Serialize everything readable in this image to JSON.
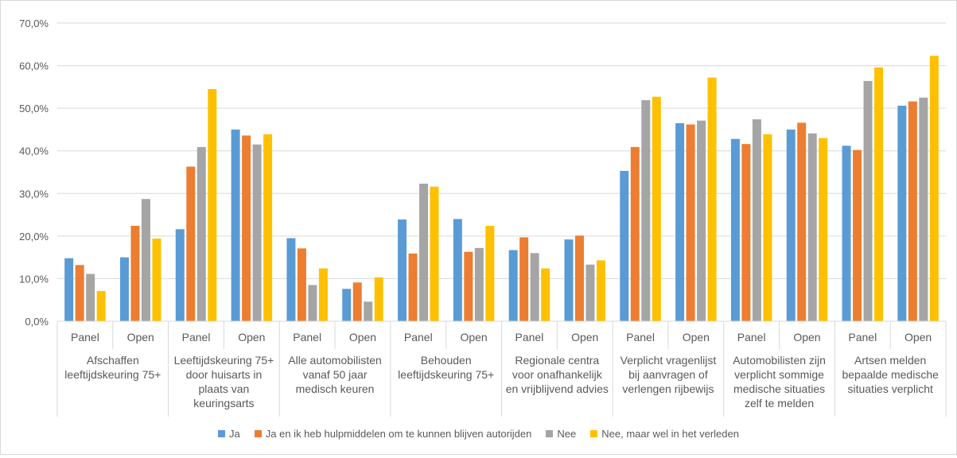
{
  "chart_data": {
    "type": "bar",
    "ylim": [
      0,
      70
    ],
    "yticks": [
      "0,0%",
      "10,0%",
      "20,0%",
      "30,0%",
      "40,0%",
      "50,0%",
      "60,0%",
      "70,0%"
    ],
    "groups": [
      {
        "label": [
          "Afschaffen",
          "leeftijdskeuring 75+"
        ],
        "subs": [
          "Panel",
          "Open"
        ]
      },
      {
        "label": [
          "Leeftijdskeuring 75+",
          "door huisarts in",
          "plaats van",
          "keuringsarts"
        ],
        "subs": [
          "Panel",
          "Open"
        ]
      },
      {
        "label": [
          "Alle automobilisten",
          "vanaf 50 jaar",
          "medisch keuren"
        ],
        "subs": [
          "Panel",
          "Open"
        ]
      },
      {
        "label": [
          "Behouden",
          "leeftijdskeuring 75+"
        ],
        "subs": [
          "Panel",
          "Open"
        ]
      },
      {
        "label": [
          "Regionale centra",
          "voor onafhankelijk",
          "en vrijblijvend advies"
        ],
        "subs": [
          "Panel",
          "Open"
        ]
      },
      {
        "label": [
          "Verplicht vragenlijst",
          "bij aanvragen of",
          "verlengen rijbewijs"
        ],
        "subs": [
          "Panel",
          "Open"
        ]
      },
      {
        "label": [
          "Automobilisten zijn",
          "verplicht sommige",
          "medische situaties",
          "zelf te melden"
        ],
        "subs": [
          "Panel",
          "Open"
        ]
      },
      {
        "label": [
          "Artsen melden",
          "bepaalde medische",
          "situaties verplicht"
        ],
        "subs": [
          "Panel",
          "Open"
        ]
      }
    ],
    "series": [
      {
        "name": "Ja",
        "color": "#5b9bd5",
        "values": [
          14.8,
          15.0,
          21.6,
          45.0,
          19.5,
          7.6,
          23.9,
          24.0,
          16.7,
          19.2,
          35.3,
          46.5,
          42.8,
          45.0,
          41.2,
          50.6
        ]
      },
      {
        "name": "Ja en ik heb hulpmiddelen om te kunnen blijven autorijden",
        "color": "#ed7d31",
        "values": [
          13.2,
          22.4,
          36.3,
          43.6,
          17.1,
          9.1,
          15.9,
          16.3,
          19.7,
          20.1,
          40.9,
          46.2,
          41.6,
          46.6,
          40.2,
          51.6
        ]
      },
      {
        "name": "Nee",
        "color": "#a5a5a5",
        "values": [
          11.1,
          28.7,
          40.9,
          41.5,
          8.5,
          4.6,
          32.3,
          17.2,
          16.0,
          13.3,
          51.9,
          47.1,
          47.4,
          44.1,
          56.4,
          52.5
        ]
      },
      {
        "name": "Nee, maar wel in het verleden",
        "color": "#ffc000",
        "values": [
          7.1,
          19.4,
          54.5,
          43.9,
          12.4,
          10.3,
          31.6,
          22.4,
          12.4,
          14.3,
          52.7,
          57.2,
          43.9,
          43.0,
          59.6,
          62.3
        ]
      }
    ]
  }
}
